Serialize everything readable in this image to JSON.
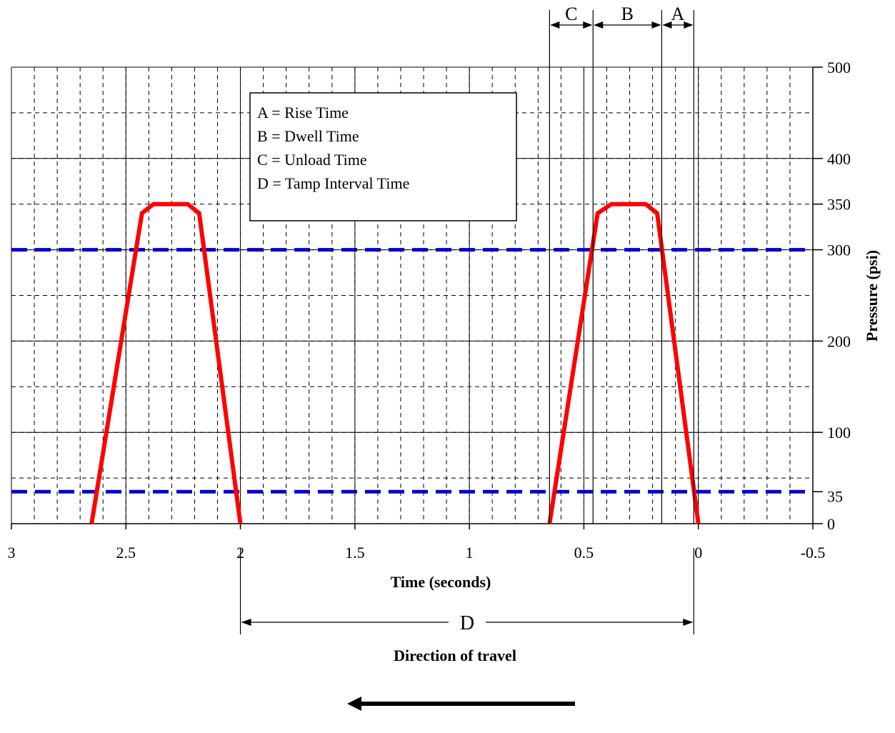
{
  "chart_data": {
    "type": "line",
    "xlabel": "Time (seconds)",
    "ylabel": "Pressure (psi)",
    "xlim": [
      3,
      -0.5
    ],
    "ylim": [
      0,
      500
    ],
    "x_ticks": [
      3,
      2.5,
      2,
      1.5,
      1,
      0.5,
      0,
      -0.5
    ],
    "x_tick_labels": [
      "3",
      "2.5",
      "2",
      "1.5",
      "1",
      "0.5",
      "0",
      "-0.5"
    ],
    "y_ticks": [
      0,
      35,
      100,
      200,
      300,
      350,
      400,
      500
    ],
    "y_tick_labels": [
      "0",
      "35",
      "100",
      "200",
      "300",
      "350",
      "400",
      "500"
    ],
    "x_minor_step": 0.1,
    "y_minor_step": 50,
    "grid": true,
    "series": [
      {
        "color": "#ff0000",
        "x": [
          2.65,
          2.43,
          2.38,
          2.23,
          2.18,
          2.0
        ],
        "y": [
          0,
          340,
          350,
          350,
          340,
          0
        ]
      },
      {
        "color": "#ff0000",
        "x": [
          0.65,
          0.44,
          0.38,
          0.23,
          0.18,
          0.0
        ],
        "y": [
          0,
          340,
          350,
          350,
          340,
          0
        ]
      }
    ],
    "reference_lines": [
      {
        "y": 300,
        "color": "#0000cc",
        "style": "dashed"
      },
      {
        "y": 35,
        "color": "#0000cc",
        "style": "dashed"
      }
    ],
    "legend_box": {
      "lines": [
        "A = Rise Time",
        "B = Dwell Time",
        "C = Unload Time",
        "D = Tamp Interval Time"
      ]
    },
    "intervals": [
      {
        "label": "C",
        "from": 0.65,
        "to": 0.46
      },
      {
        "label": "B",
        "from": 0.46,
        "to": 0.16
      },
      {
        "label": "A",
        "from": 0.16,
        "to": 0.02
      }
    ],
    "tamp_interval": {
      "label": "D",
      "from": 2.0,
      "to": 0.02
    },
    "direction_label": "Direction of travel"
  }
}
